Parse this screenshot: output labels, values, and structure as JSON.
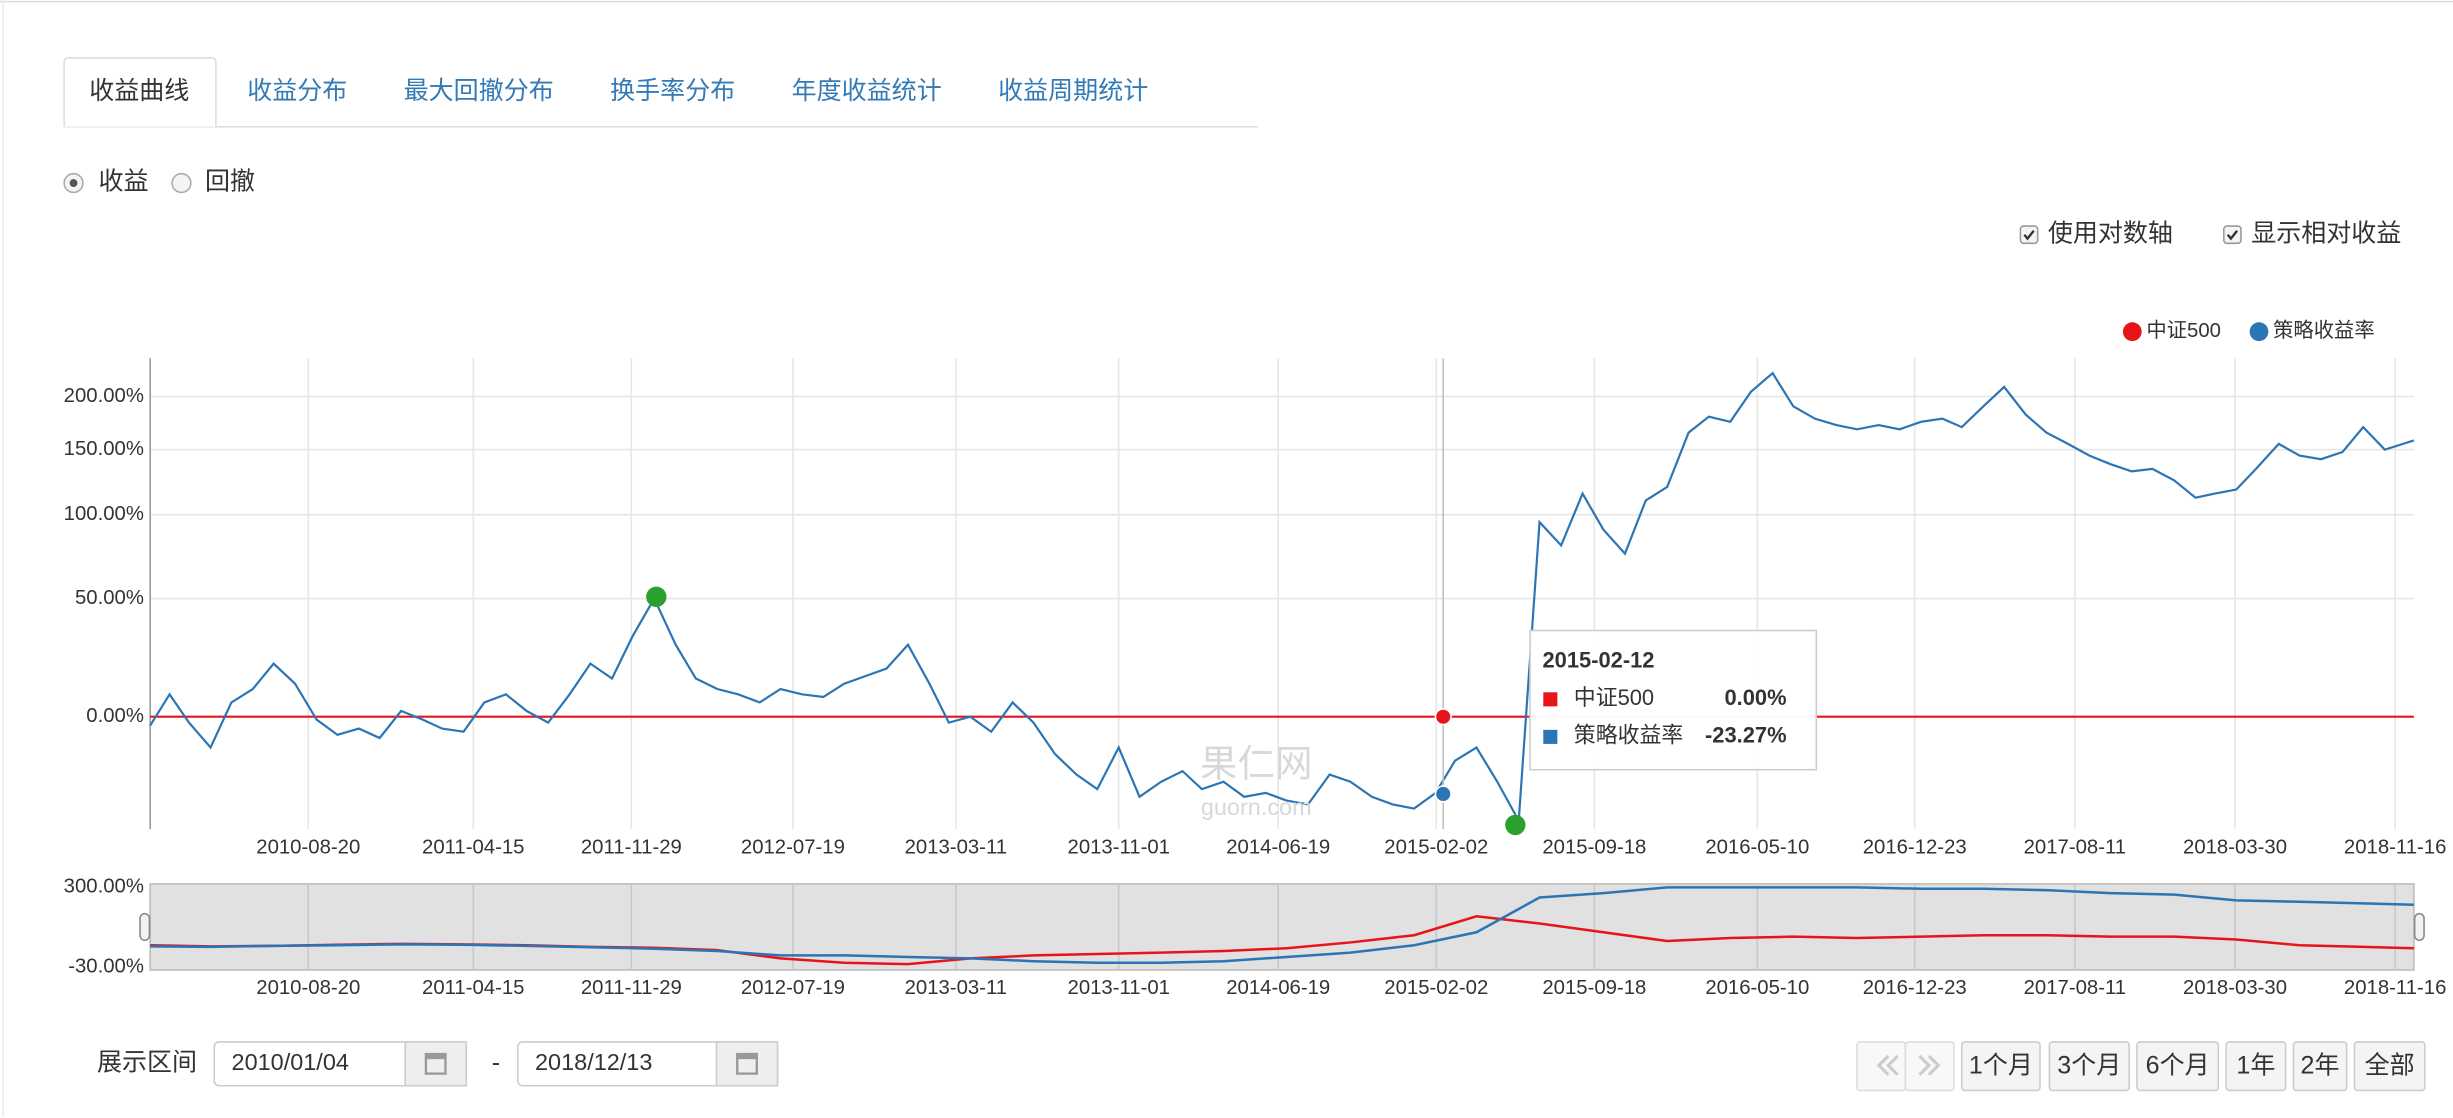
{
  "tabs": [
    "收益曲线",
    "收益分布",
    "最大回撤分布",
    "换手率分布",
    "年度收益统计",
    "收益周期统计"
  ],
  "radios": [
    "收益",
    "回撤"
  ],
  "checkboxes": [
    "使用对数轴",
    "显示相对收益"
  ],
  "chart_data": [
    {
      "type": "line",
      "log_scale": true,
      "grid": true,
      "legend": "top-right",
      "x": [
        "2010-01-04",
        "2010-02-01",
        "2010-03-01",
        "2010-04-01",
        "2010-05-01",
        "2010-06-01",
        "2010-07-01",
        "2010-08-01",
        "2010-09-01",
        "2010-10-01",
        "2010-11-01",
        "2010-12-01",
        "2011-01-01",
        "2011-02-01",
        "2011-03-01",
        "2011-04-01",
        "2011-05-01",
        "2011-06-01",
        "2011-07-01",
        "2011-08-01",
        "2011-09-01",
        "2011-10-01",
        "2011-11-01",
        "2011-12-01",
        "2012-01-01",
        "2012-02-01",
        "2012-03-01",
        "2012-04-01",
        "2012-05-01",
        "2012-06-01",
        "2012-07-01",
        "2012-08-01",
        "2012-09-01",
        "2012-10-01",
        "2012-11-01",
        "2012-12-01",
        "2013-01-01",
        "2013-02-01",
        "2013-03-01",
        "2013-04-01",
        "2013-05-01",
        "2013-06-01",
        "2013-07-01",
        "2013-08-01",
        "2013-09-01",
        "2013-10-01",
        "2013-11-01",
        "2013-12-01",
        "2014-01-01",
        "2014-02-01",
        "2014-03-01",
        "2014-04-01",
        "2014-05-01",
        "2014-06-01",
        "2014-07-01",
        "2014-08-01",
        "2014-09-01",
        "2014-10-01",
        "2014-11-01",
        "2014-12-01",
        "2015-01-01",
        "2015-02-01",
        "2015-03-01",
        "2015-04-01",
        "2015-05-01",
        "2015-06-01",
        "2015-07-01",
        "2015-08-01",
        "2015-09-01",
        "2015-10-01",
        "2015-11-01",
        "2015-12-01",
        "2016-01-01",
        "2016-02-01",
        "2016-03-01",
        "2016-04-01",
        "2016-05-01",
        "2016-06-01",
        "2016-07-01",
        "2016-08-01",
        "2016-09-01",
        "2016-10-01",
        "2016-11-01",
        "2016-12-01",
        "2017-01-01",
        "2017-02-01",
        "2017-03-01",
        "2017-04-01",
        "2017-05-01",
        "2017-06-01",
        "2017-07-01",
        "2017-08-01",
        "2017-09-01",
        "2017-10-01",
        "2017-11-01",
        "2017-12-01",
        "2018-01-01",
        "2018-02-01",
        "2018-03-01",
        "2018-04-01",
        "2018-05-01",
        "2018-06-01",
        "2018-07-01",
        "2018-08-01",
        "2018-09-01",
        "2018-10-01",
        "2018-11-01",
        "2018-12-13"
      ],
      "series": [
        {
          "name": "中证500",
          "color": "#e8141a",
          "values": [
            0,
            0,
            0,
            0,
            0,
            0,
            0,
            0,
            0,
            0,
            0,
            0,
            0,
            0,
            0,
            0,
            0,
            0,
            0,
            0,
            0,
            0,
            0,
            0,
            0,
            0,
            0,
            0,
            0,
            0,
            0,
            0,
            0,
            0,
            0,
            0,
            0,
            0,
            0,
            0,
            0,
            0,
            0,
            0,
            0,
            0,
            0,
            0,
            0,
            0,
            0,
            0,
            0,
            0,
            0,
            0,
            0,
            0,
            0,
            0,
            0,
            0,
            0,
            0,
            0,
            0,
            0,
            0,
            0,
            0,
            0,
            0,
            0,
            0,
            0,
            0,
            0,
            0,
            0,
            0,
            0,
            0,
            0,
            0,
            0,
            0,
            0,
            0,
            0,
            0,
            0,
            0,
            0,
            0,
            0,
            0,
            0,
            0,
            0,
            0,
            0,
            0,
            0,
            0,
            0,
            0,
            0,
            0
          ]
        },
        {
          "name": "策略收益率",
          "color": "#2b75b5",
          "values": [
            -3,
            8,
            -2,
            -10,
            5,
            10,
            20,
            12,
            -1,
            -6,
            -4,
            -7,
            2,
            -1,
            -4,
            -5,
            5,
            8,
            2,
            -2,
            8,
            20,
            14,
            32,
            50,
            28,
            14,
            10,
            8,
            5,
            10,
            8,
            7,
            12,
            15,
            18,
            28,
            12,
            -2,
            0,
            -5,
            5,
            -2,
            -12,
            -18,
            -22,
            -10,
            -24,
            -20,
            -17,
            -22,
            -20,
            -24,
            -23,
            -25,
            -26,
            -18,
            -20,
            -24,
            -26,
            -27,
            -23,
            -14,
            -10,
            -20,
            -30,
            95,
            80,
            115,
            90,
            75,
            110,
            120,
            165,
            180,
            175,
            205,
            225,
            190,
            178,
            172,
            168,
            172,
            168,
            175,
            178,
            170,
            190,
            210,
            182,
            165,
            155,
            145,
            138,
            132,
            134,
            125,
            112,
            115,
            118,
            135,
            155,
            145,
            142,
            148,
            170,
            150,
            158
          ]
        }
      ],
      "markers": [
        {
          "x": "2012-01-04",
          "value": 50.9
        },
        {
          "x": "2015-05-27",
          "value": -31
        }
      ],
      "marker_color": "#2ca02c",
      "xlim": [
        "2010-01-04",
        "2018-12-13"
      ],
      "xticks": [
        "2010-08-20",
        "2011-04-15",
        "2011-11-29",
        "2012-07-19",
        "2013-03-11",
        "2013-11-01",
        "2014-06-19",
        "2015-02-02",
        "2015-09-18",
        "2016-05-10",
        "2016-12-23",
        "2017-08-11",
        "2018-03-30",
        "2018-11-16"
      ],
      "ylim": [
        -32,
        242
      ],
      "yticks": [
        {
          "value": 0,
          "label": "0.00%"
        },
        {
          "value": 50,
          "label": "50.00%"
        },
        {
          "value": 100,
          "label": "100.00%"
        },
        {
          "value": 150,
          "label": "150.00%"
        },
        {
          "value": 200,
          "label": "200.00%"
        }
      ]
    },
    {
      "type": "line",
      "grid": true,
      "x": [
        "2010-01-04",
        "2010-04-01",
        "2010-07-01",
        "2010-10-01",
        "2011-01-01",
        "2011-04-01",
        "2011-07-01",
        "2011-10-01",
        "2012-01-01",
        "2012-04-01",
        "2012-07-01",
        "2012-10-01",
        "2013-01-01",
        "2013-04-01",
        "2013-07-01",
        "2013-10-01",
        "2014-01-01",
        "2014-04-01",
        "2014-07-01",
        "2014-10-01",
        "2015-01-01",
        "2015-04-01",
        "2015-07-01",
        "2015-10-01",
        "2016-01-01",
        "2016-04-01",
        "2016-07-01",
        "2016-10-01",
        "2017-01-01",
        "2017-04-01",
        "2017-07-01",
        "2017-10-01",
        "2018-01-01",
        "2018-04-01",
        "2018-07-01",
        "2018-10-01",
        "2018-12-13"
      ],
      "series": [
        {
          "color": "#e8141a",
          "values": [
            60,
            56,
            58,
            62,
            66,
            64,
            60,
            54,
            50,
            40,
            6,
            -12,
            -18,
            6,
            18,
            24,
            30,
            36,
            48,
            72,
            102,
            180,
            150,
            114,
            78,
            90,
            96,
            90,
            96,
            102,
            102,
            96,
            96,
            84,
            60,
            54,
            48
          ]
        },
        {
          "color": "#2b75b5",
          "values": [
            56,
            54,
            58,
            60,
            64,
            62,
            58,
            52,
            46,
            36,
            18,
            18,
            12,
            6,
            -6,
            -12,
            -12,
            -6,
            12,
            30,
            60,
            114,
            258,
            276,
            300,
            300,
            300,
            300,
            294,
            294,
            288,
            276,
            270,
            246,
            240,
            234,
            228
          ]
        }
      ],
      "xlim": [
        "2010-01-04",
        "2018-12-13"
      ],
      "xticks": [
        "2010-08-20",
        "2011-04-15",
        "2011-11-29",
        "2012-07-19",
        "2013-03-11",
        "2013-11-01",
        "2014-06-19",
        "2015-02-02",
        "2015-09-18",
        "2016-05-10",
        "2016-12-23",
        "2017-08-11",
        "2018-03-30",
        "2018-11-16"
      ],
      "ylim": [
        -42,
        314
      ],
      "yticks": [
        {
          "value": -30,
          "label": "-30.00%"
        },
        {
          "value": 300,
          "label": "300.00%"
        }
      ]
    }
  ],
  "tooltip": {
    "date": "2015-02-12",
    "names": [
      "中证500",
      "策略收益率"
    ],
    "colors": [
      "#e8141a",
      "#2b75b5"
    ],
    "values": [
      0,
      -23.27
    ],
    "value_labels": [
      "0.00%",
      "-23.27%"
    ]
  },
  "watermark": [
    "果仁网",
    "guorn.com"
  ],
  "range": {
    "label": "展示区间",
    "start": "2010/01/04",
    "separator": "-",
    "end": "2018/12/13"
  },
  "zoom_buttons": [
    "1个月",
    "3个月",
    "6个月",
    "1年",
    "2年",
    "全部"
  ]
}
